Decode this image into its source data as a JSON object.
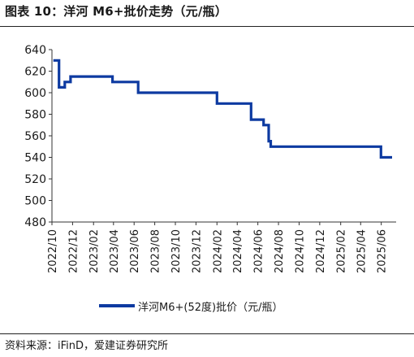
{
  "title": "图表 10：洋河 M6+批价走势（元/瓶）",
  "source": "资料来源：iFinD，爱建证券研究所",
  "colors": {
    "series": "#0d3aa1",
    "axis": "#333333",
    "text": "#1a1a1a"
  },
  "chart_data": {
    "type": "line",
    "step": true,
    "grid": false,
    "legend_position": "bottom",
    "ylim": [
      480,
      640
    ],
    "yticks": [
      480,
      500,
      520,
      540,
      560,
      580,
      600,
      620,
      640
    ],
    "xlim": [
      "2022-10-01",
      "2025-07-15"
    ],
    "xticks": [
      "2022/10",
      "2022/12",
      "2023/02",
      "2023/04",
      "2023/06",
      "2023/08",
      "2023/10",
      "2023/12",
      "2024/02",
      "2024/04",
      "2024/06",
      "2024/08",
      "2024/10",
      "2024/12",
      "2025/02",
      "2025/04",
      "2025/06"
    ],
    "xticks_dates": [
      "2022-10-01",
      "2022-12-01",
      "2023-02-01",
      "2023-04-01",
      "2023-06-01",
      "2023-08-01",
      "2023-10-01",
      "2023-12-01",
      "2024-02-01",
      "2024-04-01",
      "2024-06-01",
      "2024-08-01",
      "2024-10-01",
      "2024-12-01",
      "2025-02-01",
      "2025-04-01",
      "2025-06-01"
    ],
    "series": [
      {
        "name": "洋河M6+(52度)批价（元/瓶）",
        "points": [
          [
            "2022-10-05",
            630
          ],
          [
            "2022-10-22",
            605
          ],
          [
            "2022-11-08",
            610
          ],
          [
            "2022-11-25",
            615
          ],
          [
            "2023-03-29",
            610
          ],
          [
            "2023-06-13",
            600
          ],
          [
            "2024-02-01",
            590
          ],
          [
            "2024-05-12",
            575
          ],
          [
            "2024-06-18",
            570
          ],
          [
            "2024-07-03",
            555
          ],
          [
            "2024-07-09",
            550
          ],
          [
            "2025-05-31",
            540
          ],
          [
            "2025-07-03",
            540
          ]
        ]
      }
    ]
  }
}
